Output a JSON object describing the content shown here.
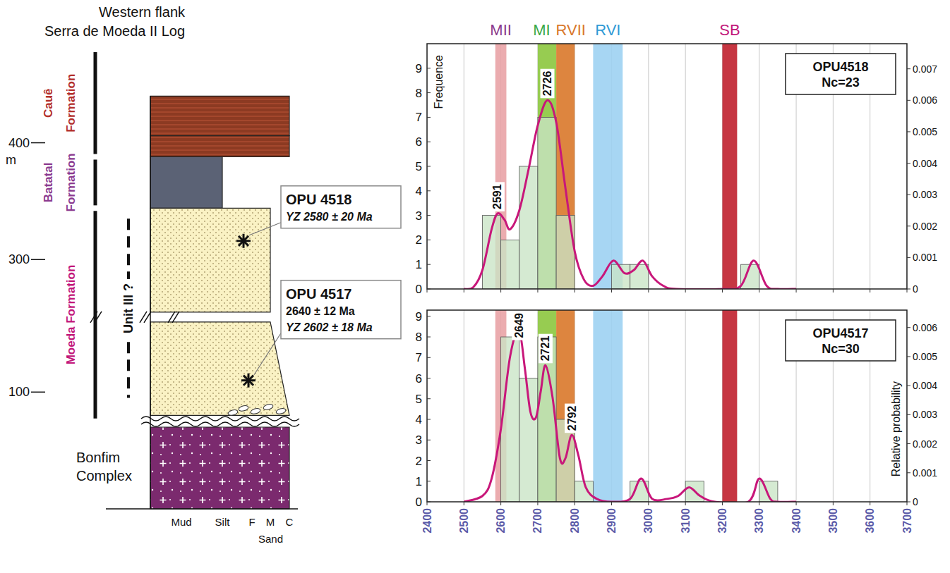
{
  "stratigraphic_log": {
    "title": [
      "Western flank",
      "Serra de Moeda II Log"
    ],
    "depth_unit": "m",
    "depth_ticks": [
      100,
      300,
      400
    ],
    "depth_lim": [
      0,
      480
    ],
    "depth_break": [
      160,
      255
    ],
    "formations": [
      {
        "name": "Cauê Formation",
        "range": [
          388,
          480
        ],
        "color": "#b3302b"
      },
      {
        "name": "Batatal Formation",
        "range": [
          344,
          388
        ],
        "color": "#8b3a8f"
      },
      {
        "name": "Moeda Formation",
        "range": [
          75,
          344
        ],
        "color": "#c2187a"
      }
    ],
    "unit": {
      "name": "Unit III ?",
      "range": [
        95,
        335
      ]
    },
    "layers": [
      {
        "range": [
          406,
          440
        ],
        "grain_size": "C",
        "color": "#8c3a22",
        "fill": "stripes"
      },
      {
        "range": [
          388,
          406
        ],
        "grain_size": "C",
        "color": "#8c3a22",
        "fill": "stripes"
      },
      {
        "range": [
          344,
          388
        ],
        "grain_size": "Silt",
        "color": "#5b6275",
        "fill": "plain"
      },
      {
        "range": [
          255,
          344
        ],
        "grain_size": "M",
        "color": "#faf2c4",
        "fill": "dots"
      },
      {
        "range": [
          80,
          160
        ],
        "grain_size": [
          "C",
          "M"
        ],
        "color": "#faf2c4",
        "fill": "dots"
      },
      {
        "range": [
          0,
          70
        ],
        "grain_size": "C",
        "color": "#7b2a6e",
        "fill": "crosses"
      }
    ],
    "basement": "Bonfim Complex",
    "samples": [
      {
        "name": "OPU 4518",
        "depth": 316,
        "ages": [
          {
            "text": "YZ 2580 ± 20 Ma",
            "italic": true
          }
        ]
      },
      {
        "name": "OPU 4517",
        "depth": 110,
        "ages": [
          {
            "text": "2640 ± 12 Ma",
            "italic": false
          },
          {
            "text": "YZ 2602 ± 18 Ma",
            "italic": true
          }
        ]
      }
    ],
    "grain_sizes": [
      "Mud",
      "Silt",
      "F",
      "M",
      "C"
    ],
    "sand_label": "Sand"
  },
  "age_bands": [
    {
      "label": "MII",
      "range": [
        2585,
        2615
      ],
      "color": "#e9a3a6",
      "label_color": "#8b3a8b"
    },
    {
      "label": "MI",
      "range": [
        2700,
        2750
      ],
      "color": "#8cc63e",
      "label_color": "#3aa843"
    },
    {
      "label": "RVII",
      "range": [
        2750,
        2800
      ],
      "color": "#d9782a",
      "label_color": "#d9782a"
    },
    {
      "label": "RVI",
      "range": [
        2850,
        2930
      ],
      "color": "#9dd1f2",
      "label_color": "#2f9ad6"
    },
    {
      "label": "SB",
      "range": [
        3200,
        3240
      ],
      "color": "#c0202e",
      "label_color": "#c2187a"
    }
  ],
  "chart_data": [
    {
      "type": "histogram",
      "bins": [
        2550,
        2600,
        2650,
        2700,
        2750,
        2800,
        2850,
        2900,
        2950,
        3000,
        3050,
        3100,
        3150,
        3200,
        3250,
        3300,
        3350
      ],
      "values": [
        3,
        2,
        5,
        7,
        3,
        0,
        0,
        1,
        1,
        0,
        0,
        0,
        0,
        0,
        1,
        0
      ],
      "color": "#c9e4c5",
      "density": {
        "type": "line",
        "axis": "y2",
        "color": "#c8177a",
        "x": [
          2500,
          2525,
          2550,
          2575,
          2591,
          2610,
          2625,
          2650,
          2675,
          2700,
          2726,
          2750,
          2775,
          2800,
          2825,
          2850,
          2875,
          2905,
          2935,
          2960,
          2985,
          3010,
          3040,
          3075,
          3200,
          3250,
          3285,
          3320,
          3350,
          3400
        ],
        "values": [
          0,
          5e-05,
          0.0006,
          0.0019,
          0.0024,
          0.0022,
          0.0019,
          0.0025,
          0.0038,
          0.0052,
          0.006,
          0.0053,
          0.0032,
          0.0012,
          0.0003,
          0.0001,
          0.0004,
          0.0009,
          0.0005,
          0.0006,
          0.0009,
          0.0004,
          0.0001,
          0,
          0,
          0.0001,
          0.0009,
          0.0001,
          0,
          0
        ]
      },
      "xlim": [
        2400,
        3700
      ],
      "xticks": [
        2400,
        2500,
        2600,
        2700,
        2800,
        2900,
        3000,
        3100,
        3200,
        3300,
        3400,
        3500,
        3600,
        3700
      ],
      "ylim": [
        0,
        10
      ],
      "yticks": [
        0,
        1,
        2,
        3,
        4,
        5,
        6,
        7,
        8,
        9
      ],
      "y2lim": [
        0,
        0.0078
      ],
      "y2ticks": [
        0,
        0.001,
        0.002,
        0.003,
        0.004,
        0.005,
        0.006,
        0.007
      ],
      "y_label": "Frequence",
      "sample_box": [
        "OPU4518",
        "Nc=23"
      ],
      "annotations": [
        {
          "text": "2591",
          "x": 2591
        },
        {
          "text": "2726",
          "x": 2726
        }
      ],
      "grid": true,
      "tick_labels": "y"
    },
    {
      "type": "histogram",
      "bins": [
        2550,
        2600,
        2650,
        2700,
        2750,
        2800,
        2850,
        2900,
        2950,
        3000,
        3050,
        3100,
        3150,
        3200,
        3250,
        3300,
        3350
      ],
      "values": [
        0,
        8,
        6,
        8,
        4,
        1,
        0,
        0,
        1,
        0,
        0,
        1,
        0,
        0,
        0,
        1
      ],
      "color": "#c9e4c5",
      "density": {
        "type": "line",
        "axis": "y2",
        "color": "#c8177a",
        "x": [
          2500,
          2550,
          2575,
          2600,
          2625,
          2649,
          2665,
          2680,
          2695,
          2708,
          2721,
          2740,
          2760,
          2775,
          2792,
          2810,
          2830,
          2860,
          2900,
          2950,
          2980,
          3010,
          3050,
          3080,
          3110,
          3140,
          3180,
          3270,
          3300,
          3330,
          3350,
          3400
        ],
        "values": [
          0,
          0.0002,
          0.0008,
          0.0025,
          0.005,
          0.0059,
          0.0046,
          0.0031,
          0.0029,
          0.0038,
          0.0047,
          0.0036,
          0.0015,
          0.0015,
          0.0023,
          0.0016,
          0.0005,
          0.0001,
          0,
          0.0001,
          0.0008,
          0.0001,
          0.0001,
          0.0002,
          0.0005,
          0.0002,
          0,
          0,
          0.0008,
          0.0001,
          0,
          0
        ]
      },
      "xlim": [
        2400,
        3700
      ],
      "xticks": [
        2400,
        2500,
        2600,
        2700,
        2800,
        2900,
        3000,
        3100,
        3200,
        3300,
        3400,
        3500,
        3600,
        3700
      ],
      "ylim": [
        0,
        9.3
      ],
      "yticks": [
        0,
        1,
        2,
        3,
        4,
        5,
        6,
        7,
        8,
        9
      ],
      "y2lim": [
        0,
        0.0066
      ],
      "y2ticks": [
        0,
        0.001,
        0.002,
        0.003,
        0.004,
        0.005,
        0.006
      ],
      "y2_label": "Relative probability",
      "sample_box": [
        "OPU4517",
        "Nc=30"
      ],
      "annotations": [
        {
          "text": "2649",
          "x": 2649
        },
        {
          "text": "2721",
          "x": 2721
        },
        {
          "text": "2792",
          "x": 2792
        }
      ],
      "grid": true
    }
  ]
}
